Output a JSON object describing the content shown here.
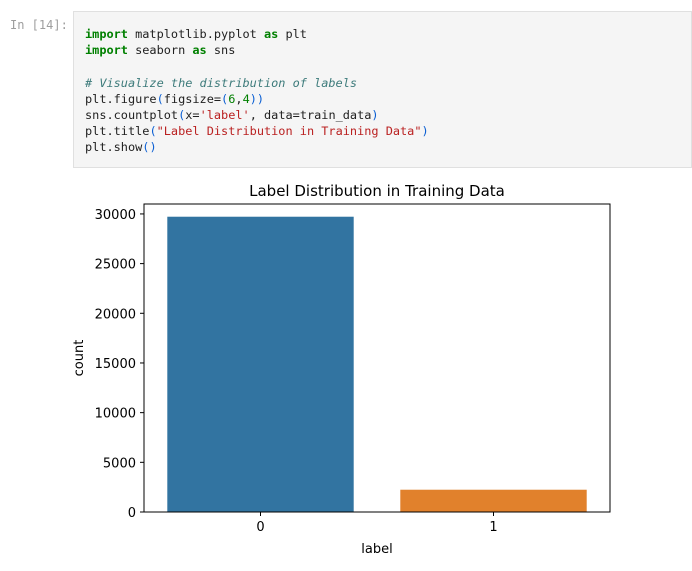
{
  "cell": {
    "prompt": "In [14]:",
    "lines": [
      [
        {
          "t": "import",
          "c": "kw"
        },
        {
          "t": " matplotlib.pyplot ",
          "c": ""
        },
        {
          "t": "as",
          "c": "kw"
        },
        {
          "t": " plt",
          "c": ""
        }
      ],
      [
        {
          "t": "import",
          "c": "kw"
        },
        {
          "t": " seaborn ",
          "c": ""
        },
        {
          "t": "as",
          "c": "kw"
        },
        {
          "t": " sns",
          "c": ""
        }
      ],
      [],
      [
        {
          "t": "# Visualize the distribution of labels",
          "c": "cm"
        }
      ],
      [
        {
          "t": "plt.figure",
          "c": ""
        },
        {
          "t": "(",
          "c": "par"
        },
        {
          "t": "figsize=",
          "c": ""
        },
        {
          "t": "(",
          "c": "par"
        },
        {
          "t": "6",
          "c": "num"
        },
        {
          "t": ",",
          "c": ""
        },
        {
          "t": "4",
          "c": "num"
        },
        {
          "t": "))",
          "c": "par"
        }
      ],
      [
        {
          "t": "sns.countplot",
          "c": ""
        },
        {
          "t": "(",
          "c": "par"
        },
        {
          "t": "x=",
          "c": ""
        },
        {
          "t": "'label'",
          "c": "str"
        },
        {
          "t": ", data=train_data",
          "c": ""
        },
        {
          "t": ")",
          "c": "par"
        }
      ],
      [
        {
          "t": "plt.title",
          "c": ""
        },
        {
          "t": "(",
          "c": "par"
        },
        {
          "t": "\"Label Distribution in Training Data\"",
          "c": "str"
        },
        {
          "t": ")",
          "c": "par"
        }
      ],
      [
        {
          "t": "plt.show",
          "c": ""
        },
        {
          "t": "()",
          "c": "par"
        }
      ]
    ]
  },
  "chart_data": {
    "type": "bar",
    "title": "Label Distribution in Training Data",
    "xlabel": "label",
    "ylabel": "count",
    "categories": [
      "0",
      "1"
    ],
    "values": [
      29720,
      2242
    ],
    "colors": [
      "#3274a1",
      "#e1812c"
    ],
    "ylim": [
      0,
      31000
    ],
    "yticks": [
      0,
      5000,
      10000,
      15000,
      20000,
      25000,
      30000
    ],
    "grid": false
  }
}
